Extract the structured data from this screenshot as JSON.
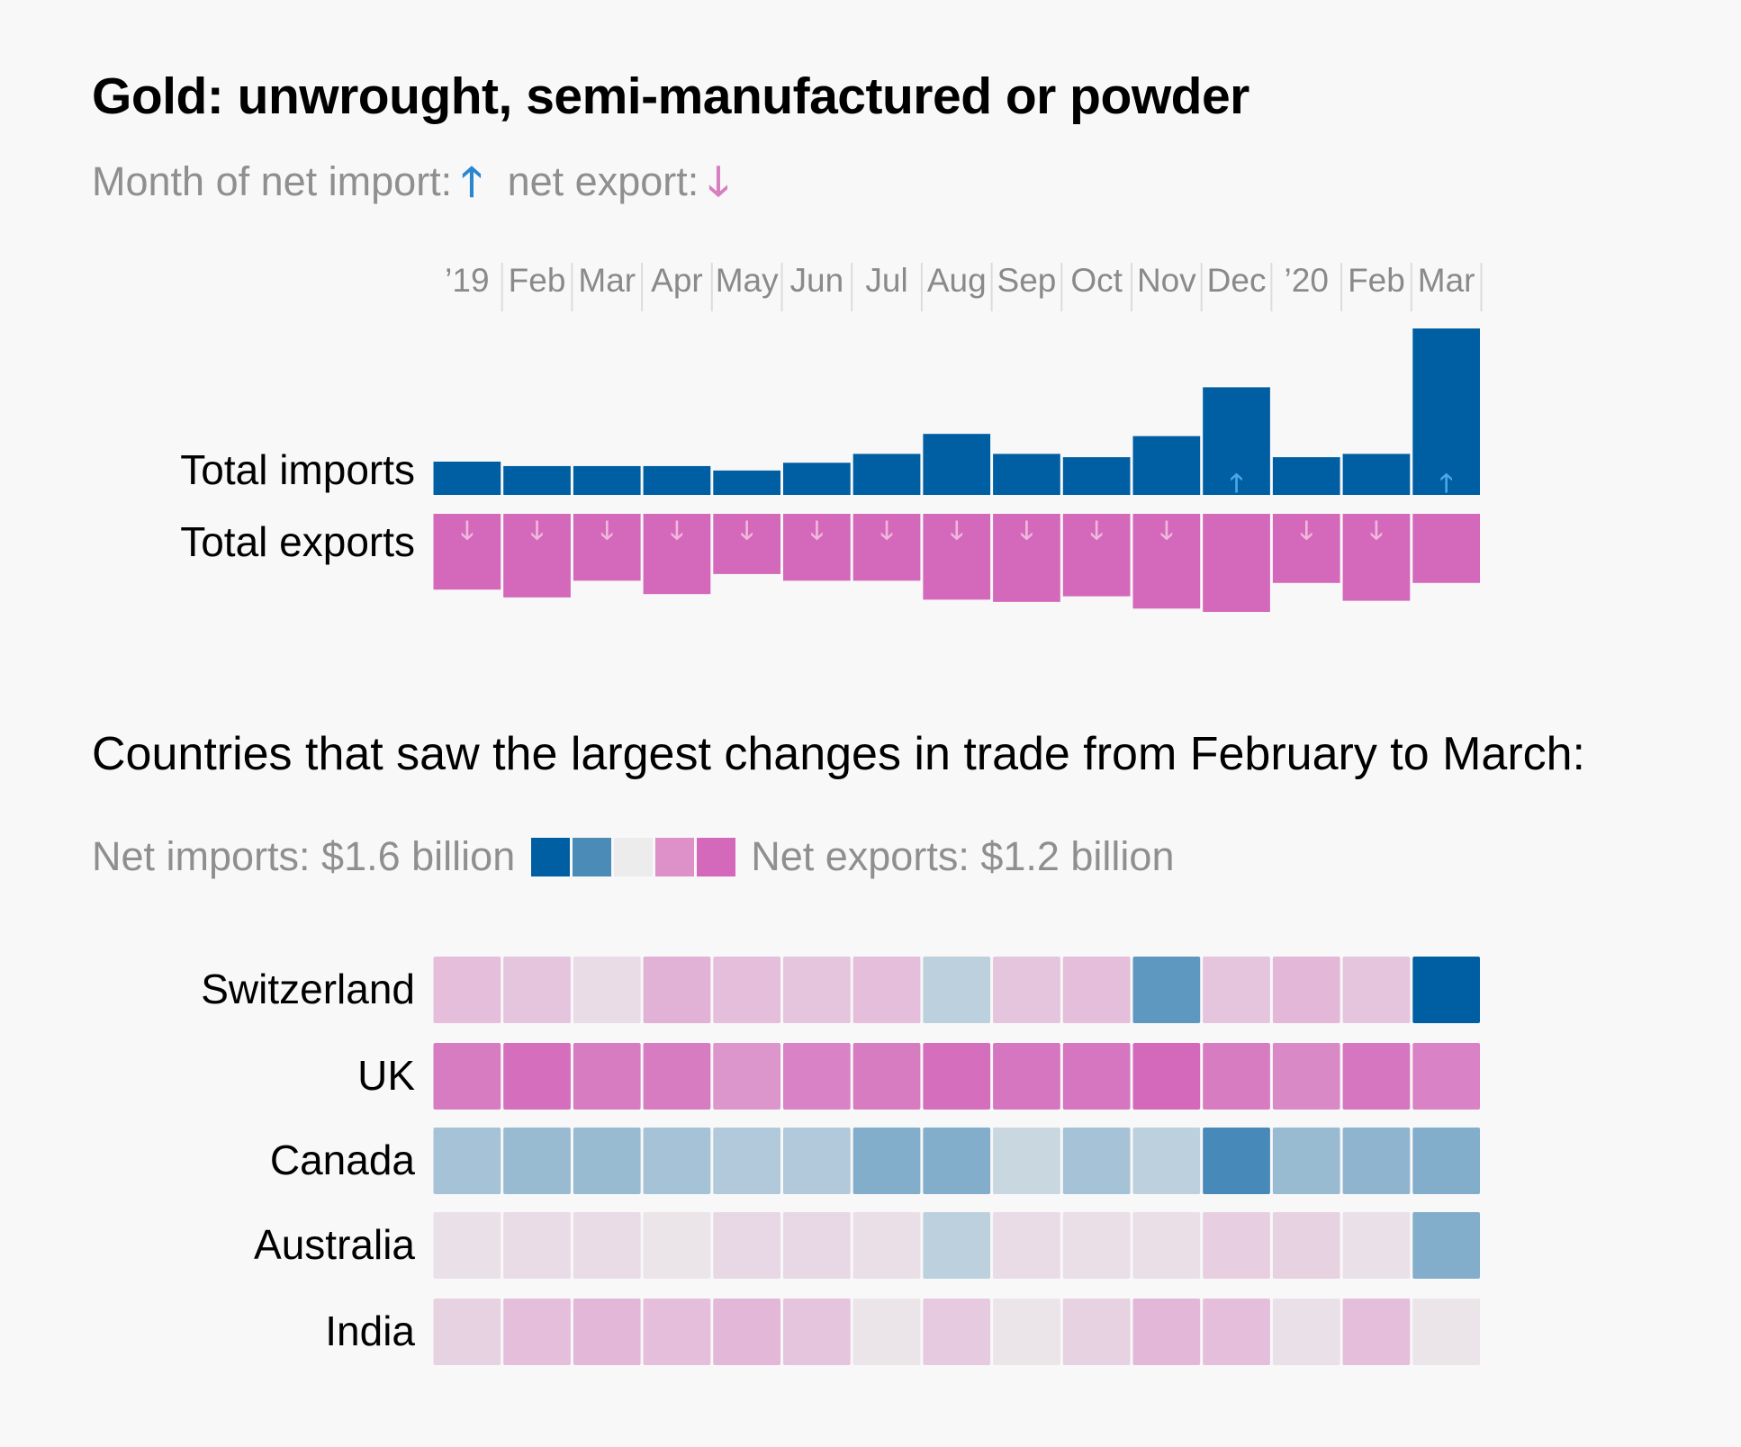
{
  "title": "Gold: unwrought, semi-manufactured or powder",
  "legend_top": {
    "import_text": "Month of net import:",
    "export_text": "net export:",
    "import_icon": "arrow-up-icon",
    "export_icon": "arrow-down-icon"
  },
  "section_title": "Countries that saw the largest changes in trade from February to March:",
  "legend_bottom": {
    "imports_text": "Net imports: $1.6 billion",
    "exports_text": "Net exports: $1.2 billion",
    "scale_colors": [
      "#005fa3",
      "#4a8bb8",
      "#ececec",
      "#dd91c8",
      "#d468bb"
    ]
  },
  "colors": {
    "imports": "#005fa3",
    "exports": "#d468bb",
    "import_arrow": "#4aa8e6",
    "export_arrow": "#f0b8de",
    "tick_divider": "#dcdcdc"
  },
  "chart_data": [
    {
      "type": "bar",
      "categories": [
        "’19",
        "Feb",
        "Mar",
        "Apr",
        "May",
        "Jun",
        "Jul",
        "Aug",
        "Sep",
        "Oct",
        "Nov",
        "Dec",
        "’20",
        "Feb",
        "Mar"
      ],
      "series": [
        {
          "name": "Total imports",
          "values": [
            30,
            26,
            26,
            26,
            22,
            29,
            37,
            55,
            37,
            34,
            53,
            97,
            34,
            37,
            150
          ]
        },
        {
          "name": "Total exports",
          "values": [
            68,
            75,
            60,
            72,
            54,
            60,
            60,
            77,
            79,
            74,
            85,
            88,
            62,
            78,
            62
          ]
        }
      ],
      "net_direction": [
        "export",
        "export",
        "export",
        "export",
        "export",
        "export",
        "export",
        "export",
        "export",
        "export",
        "export",
        "import",
        "export",
        "export",
        "import"
      ],
      "ylim": [
        0,
        150
      ]
    },
    {
      "type": "heatmap",
      "rows": [
        "Switzerland",
        "UK",
        "Canada",
        "Australia",
        "India"
      ],
      "columns": [
        "’19",
        "Feb",
        "Mar",
        "Apr",
        "May",
        "Jun",
        "Jul",
        "Aug",
        "Sep",
        "Oct",
        "Nov",
        "Dec",
        "’20",
        "Feb",
        "Mar"
      ],
      "values": [
        [
          -0.35,
          -0.3,
          -0.12,
          -0.45,
          -0.35,
          -0.3,
          -0.35,
          0.2,
          -0.3,
          -0.35,
          0.6,
          -0.3,
          -0.4,
          -0.3,
          1.0
        ],
        [
          -0.85,
          -0.95,
          -0.85,
          -0.85,
          -0.65,
          -0.8,
          -0.85,
          -0.95,
          -0.9,
          -0.9,
          -1.0,
          -0.85,
          -0.75,
          -0.9,
          -0.8
        ],
        [
          0.3,
          0.35,
          0.35,
          0.3,
          0.25,
          0.25,
          0.45,
          0.45,
          0.15,
          0.3,
          0.2,
          0.7,
          0.35,
          0.4,
          0.45
        ],
        [
          -0.08,
          -0.12,
          -0.12,
          -0.05,
          -0.15,
          -0.15,
          -0.1,
          0.2,
          -0.12,
          -0.1,
          -0.1,
          -0.22,
          -0.2,
          -0.08,
          0.45
        ],
        [
          -0.2,
          -0.35,
          -0.4,
          -0.35,
          -0.4,
          -0.3,
          -0.06,
          -0.25,
          -0.05,
          -0.2,
          -0.4,
          -0.35,
          -0.08,
          -0.35,
          -0.05
        ]
      ],
      "scale_min_label": "Net exports: $1.2 billion",
      "scale_max_label": "Net imports: $1.6 billion"
    }
  ]
}
